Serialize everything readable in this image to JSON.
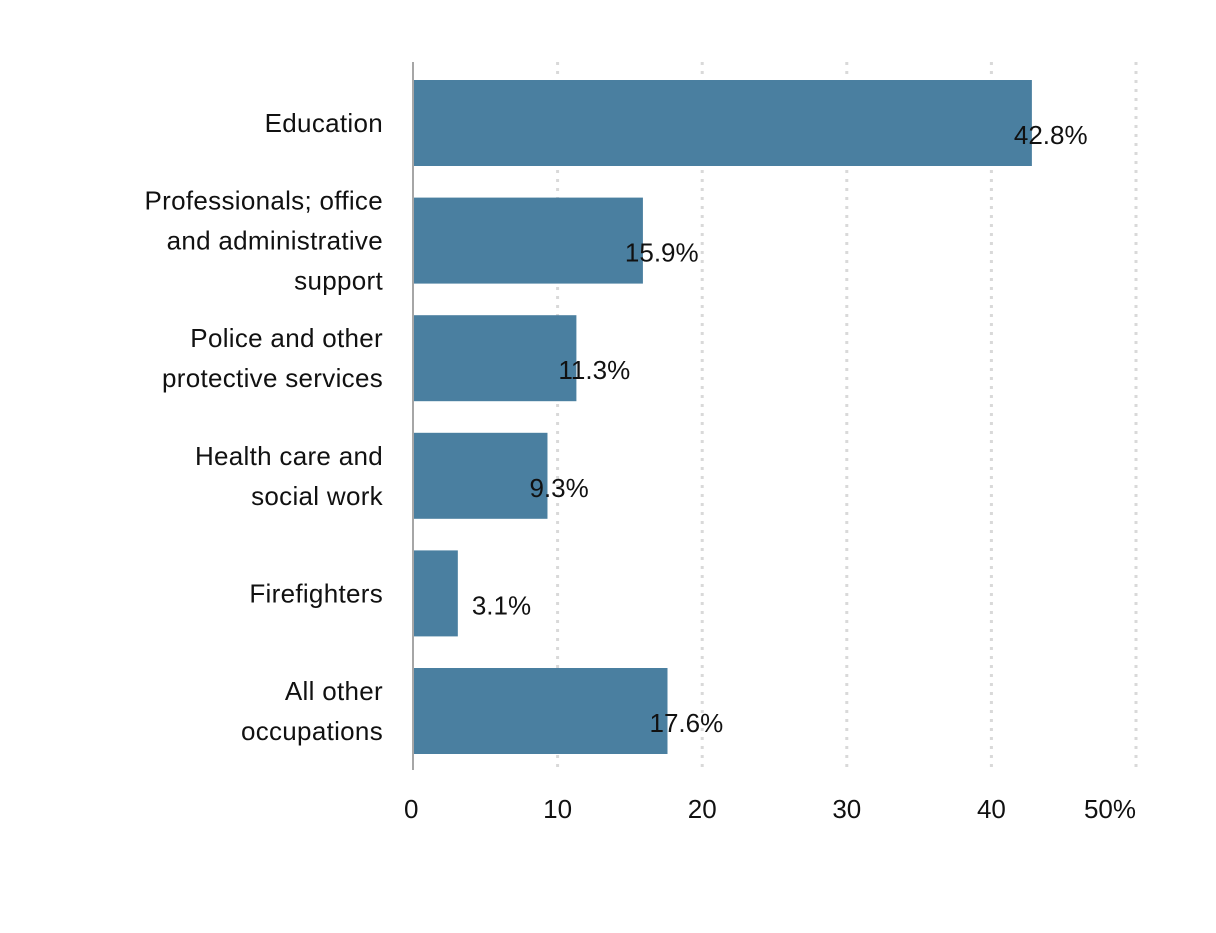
{
  "chart_data": {
    "type": "bar",
    "orientation": "horizontal",
    "categories": [
      [
        "Education"
      ],
      [
        "Professionals; office",
        "and administrative",
        "support"
      ],
      [
        "Police and other",
        "protective services"
      ],
      [
        "Health care and",
        "social work"
      ],
      [
        "Firefighters"
      ],
      [
        "All other",
        "occupations"
      ]
    ],
    "values": [
      42.8,
      15.9,
      11.3,
      9.3,
      3.1,
      17.6
    ],
    "value_labels": [
      "42.8%",
      "15.9%",
      "11.3%",
      "9.3%",
      "3.1%",
      "17.6%"
    ],
    "xlim": [
      0,
      50
    ],
    "x_ticks": [
      0,
      10,
      20,
      30,
      40,
      50
    ],
    "x_tick_labels": [
      "0",
      "10",
      "20",
      "30",
      "40",
      "50%"
    ],
    "grid": "vertical dotted",
    "legend": "none",
    "bar_color": "#4a7fa0",
    "grid_color": "#d9d9d9",
    "axis_color": "#a6a6a6",
    "text_color": "#111111"
  }
}
